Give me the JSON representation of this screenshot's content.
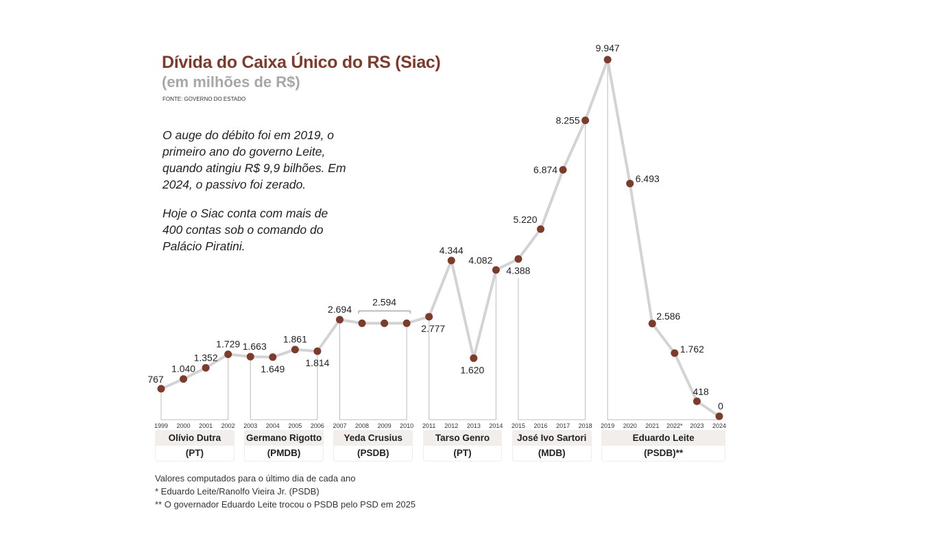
{
  "chart_data": {
    "type": "line",
    "title": "Dívida do Caixa Único do RS (Siac)",
    "subtitle": "(em milhões de R$)",
    "source": "FONTE: GOVERNO DO ESTADO",
    "x": [
      "1999",
      "2000",
      "2001",
      "2002",
      "2003",
      "2004",
      "2005",
      "2006",
      "2007",
      "2008",
      "2009",
      "2010",
      "2011",
      "2012",
      "2013",
      "2014",
      "2015",
      "2016",
      "2017",
      "2018",
      "2019",
      "2020",
      "2021",
      "2022*",
      "2023",
      "2024"
    ],
    "values": [
      767,
      1040,
      1352,
      1729,
      1663,
      1649,
      1861,
      1814,
      2694,
      2594,
      2594,
      2594,
      2777,
      4344,
      1620,
      4082,
      4388,
      5220,
      6874,
      8255,
      9947,
      6493,
      2586,
      1762,
      418,
      0
    ],
    "value_labels": [
      "767",
      "1.040",
      "1.352",
      "1.729",
      "1.663",
      "1.649",
      "1.861",
      "1.814",
      "2.694",
      "",
      "2.594",
      "",
      "2.777",
      "4.344",
      "1.620",
      "4.082",
      "4.388",
      "5.220",
      "6.874",
      "8.255",
      "9.947",
      "6.493",
      "2.586",
      "1.762",
      "418",
      "0"
    ],
    "ylim": [
      0,
      9947
    ],
    "grid": false,
    "colors": {
      "line": "#d3d3d3",
      "marker": "#7d3b2c",
      "title": "#7d3b2c",
      "subtitle": "#a7a7a7"
    },
    "governments": [
      {
        "name": "Olívio Dutra",
        "party": "(PT)",
        "from": "1999",
        "to": "2002"
      },
      {
        "name": "Germano Rigotto",
        "party": "(PMDB)",
        "from": "2003",
        "to": "2006"
      },
      {
        "name": "Yeda Crusius",
        "party": "(PSDB)",
        "from": "2007",
        "to": "2010"
      },
      {
        "name": "Tarso Genro",
        "party": "(PT)",
        "from": "2011",
        "to": "2014"
      },
      {
        "name": "José Ivo Sartori",
        "party": "(MDB)",
        "from": "2015",
        "to": "2018"
      },
      {
        "name": "Eduardo Leite",
        "party": "(PSDB)**",
        "from": "2019",
        "to": "2024"
      }
    ]
  },
  "text": {
    "p1": "O auge do débito foi em 2019, o primeiro ano do governo Leite, quando atingiu R$ 9,9 bilhões. Em 2024, o passivo foi zerado.",
    "p2": "Hoje o Siac conta com mais de 400 contas sob o comando do Palácio Piratini."
  },
  "notes": [
    "Valores computados para o último dia de cada ano",
    "* Eduardo Leite/Ranolfo Vieira Jr. (PSDB)",
    "** O governador Eduardo Leite trocou o PSDB pelo PSD em 2025"
  ]
}
